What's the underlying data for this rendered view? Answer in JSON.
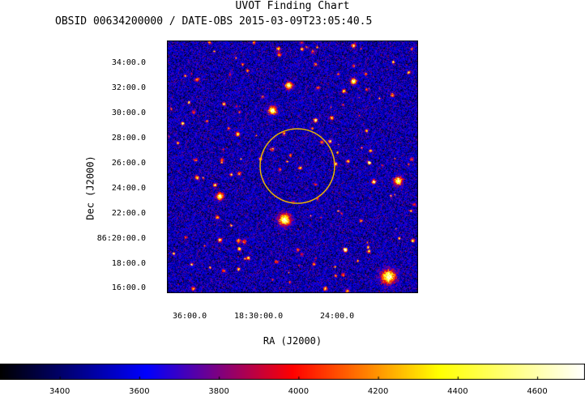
{
  "header": {
    "title": "UVOT Finding Chart",
    "subtitle": "OBSID 00634200000 / DATE-OBS 2015-03-09T23:05:40.5"
  },
  "chart_data": {
    "type": "heatmap",
    "title": "UVOT Finding Chart",
    "subtitle": "OBSID 00634200000 / DATE-OBS 2015-03-09T23:05:40.5",
    "xlabel": "RA (J2000)",
    "ylabel": "Dec (J2000)",
    "x_ticks": [
      "36:00.0",
      "18:30:00.0",
      "24:00.0"
    ],
    "y_ticks": [
      "34:00.0",
      "32:00.0",
      "30:00.0",
      "28:00.0",
      "26:00.0",
      "24:00.0",
      "22:00.0",
      "86:20:00.0",
      "18:00.0",
      "16:00.0"
    ],
    "colorbar": {
      "ticks": [
        "3400",
        "3600",
        "3800",
        "4000",
        "4200",
        "4400",
        "4600"
      ],
      "range": [
        3250,
        4720
      ],
      "colormap": [
        "#000000",
        "#0000ff",
        "#ff0000",
        "#ffff00",
        "#ffffff"
      ]
    },
    "region_circle": {
      "color": "#e8b400"
    }
  }
}
